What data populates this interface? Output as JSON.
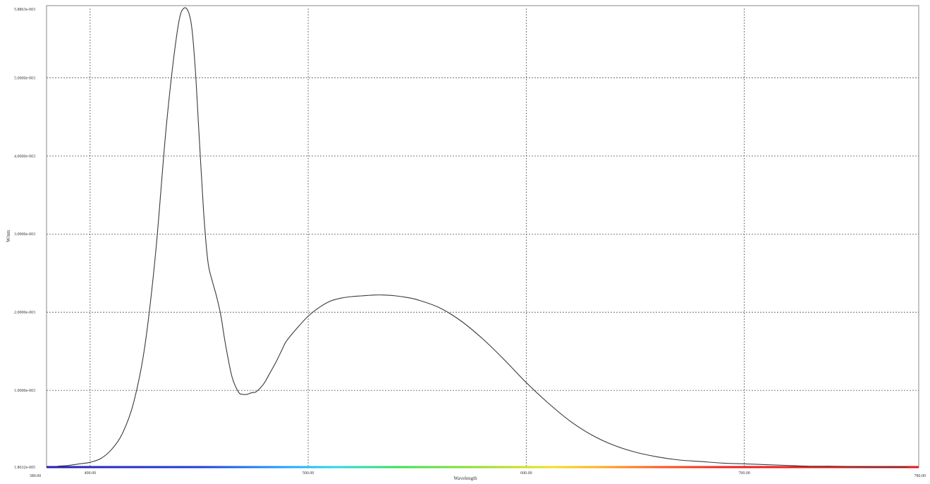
{
  "chart_data": {
    "type": "line",
    "title": "",
    "xlabel": "Wavelength",
    "ylabel": "W/nm",
    "xlim": [
      380,
      780
    ],
    "ylim": [
      1.86532e-05,
      0.0058863
    ],
    "x_ticks": [
      400,
      500,
      600,
      700
    ],
    "x_tick_labels": [
      "400.00",
      "500.00",
      "600.00",
      "700.00"
    ],
    "x_min_label": "380.00",
    "x_max_label": "780.00",
    "y_ticks": [
      0.001,
      0.002,
      0.003,
      0.004,
      0.005
    ],
    "y_tick_labels": [
      "1.0000e-003",
      "2.0000e-003",
      "3.0000e-003",
      "4.0000e-003",
      "5.0000e-003"
    ],
    "y_min_label": "1.8632e-005",
    "y_max_label": "5.8863e-003",
    "grid": true,
    "spectrum_bar": true,
    "series": [
      {
        "x": [
          385,
          390,
          395,
          400,
          405,
          410,
          415,
          420,
          425,
          430,
          435,
          440,
          443,
          446,
          448,
          450,
          452,
          454,
          456,
          458,
          460,
          462,
          465,
          468,
          470,
          472,
          474,
          476,
          478,
          480,
          482,
          485,
          488,
          490,
          495,
          500,
          505,
          510,
          515,
          520,
          525,
          530,
          535,
          540,
          545,
          550,
          560,
          570,
          580,
          590,
          600,
          610,
          620,
          630,
          640,
          650,
          660,
          670,
          680,
          690,
          700,
          710,
          720,
          730,
          740,
          750,
          760,
          770,
          775
        ],
        "y": [
          3e-05,
          4e-05,
          6e-05,
          8e-05,
          0.00013,
          0.00025,
          0.00046,
          0.00085,
          0.00155,
          0.00275,
          0.0044,
          0.0056,
          0.00589,
          0.00575,
          0.0052,
          0.00425,
          0.0033,
          0.00265,
          0.0024,
          0.0022,
          0.00195,
          0.0016,
          0.00118,
          0.00098,
          0.00095,
          0.00095,
          0.00097,
          0.00098,
          0.00103,
          0.0011,
          0.0012,
          0.00135,
          0.00152,
          0.00163,
          0.0018,
          0.00195,
          0.00206,
          0.00214,
          0.00218,
          0.0022,
          0.00221,
          0.00222,
          0.00222,
          0.00221,
          0.00219,
          0.00216,
          0.00206,
          0.00189,
          0.00166,
          0.00139,
          0.0011,
          0.00084,
          0.00061,
          0.00043,
          0.0003,
          0.00021,
          0.00015,
          0.00011,
          9e-05,
          7e-05,
          6e-05,
          5e-05,
          4e-05,
          3e-05,
          3e-05,
          2.5e-05,
          2e-05,
          2e-05,
          2e-05
        ]
      }
    ]
  }
}
